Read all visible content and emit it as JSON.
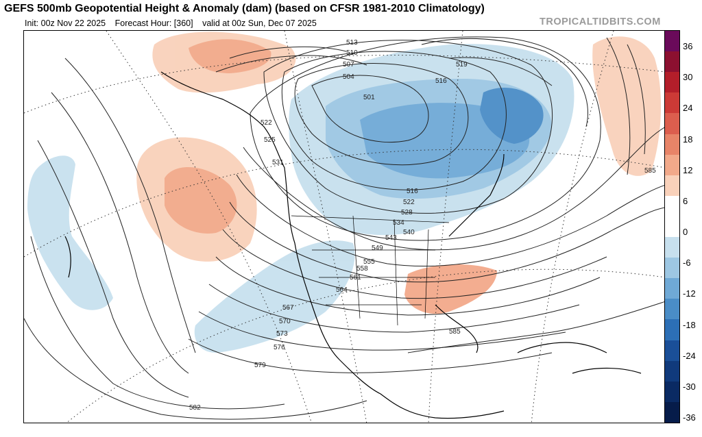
{
  "header": {
    "title": "GEFS 500mb Geopotential Height & Anomaly (dam) (based on CFSR 1981-2010 Climatology)",
    "init": "Init: 00z Nov 22 2025",
    "forecast_hour": "Forecast Hour: [360]",
    "valid": "valid at 00z Sun, Dec 07 2025",
    "brand": "TROPICALTIDBITS.COM"
  },
  "colorbar": {
    "ticks": [
      "36",
      "30",
      "24",
      "18",
      "12",
      "6",
      "0",
      "-6",
      "-12",
      "-18",
      "-24",
      "-30",
      "-36"
    ],
    "colors": [
      "#6a0a5a",
      "#8c1030",
      "#b31e2a",
      "#cc3a36",
      "#dc5e4e",
      "#e88468",
      "#f2a98a",
      "#f9d1ba",
      "#ffffff",
      "#ffffff",
      "#c7e0ee",
      "#9dc7e3",
      "#6fa9d6",
      "#4a8dc7",
      "#2c6fb6",
      "#1a4f98",
      "#103a7c",
      "#0a2a63",
      "#061c4a"
    ]
  },
  "contour_labels": [
    "513",
    "510",
    "507",
    "504",
    "501",
    "519",
    "516",
    "522",
    "525",
    "531",
    "516",
    "522",
    "528",
    "534",
    "540",
    "543",
    "549",
    "555",
    "558",
    "561",
    "564",
    "567",
    "570",
    "573",
    "576",
    "579",
    "582",
    "585",
    "585"
  ],
  "colors": {
    "warm_anomaly": "#f2a98a",
    "warm_anomaly_strong": "#e88468",
    "cold_anomaly": "#9dc7e3",
    "cold_anomaly_strong": "#4a8dc7",
    "contour": "#222222",
    "coastline": "#000000"
  }
}
